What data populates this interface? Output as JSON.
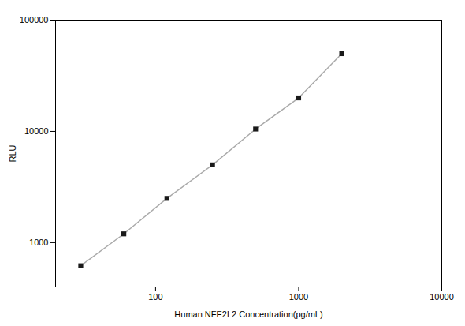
{
  "chart_data": {
    "type": "line",
    "xlabel": "Human NFE2L2 Concentration(pg/mL)",
    "ylabel": "RLU",
    "log": true,
    "x": [
      30,
      60,
      120,
      250,
      500,
      1000,
      2000
    ],
    "series": [
      {
        "type": "line",
        "color": "#aaaaaa",
        "line_style": "solid",
        "values": [
          620,
          1200,
          2500,
          5000,
          10500,
          20000,
          50000
        ]
      },
      {
        "type": "scatter",
        "color": "#1a1a1a",
        "marker": "square",
        "values": [
          620,
          1200,
          2500,
          5000,
          10500,
          20000,
          50000
        ]
      }
    ],
    "xlim": [
      20,
      10000
    ],
    "ylim": [
      400,
      100000
    ],
    "xticks": [
      100,
      1000,
      10000
    ],
    "yticks": [
      1000,
      10000,
      100000
    ],
    "grid": false
  }
}
